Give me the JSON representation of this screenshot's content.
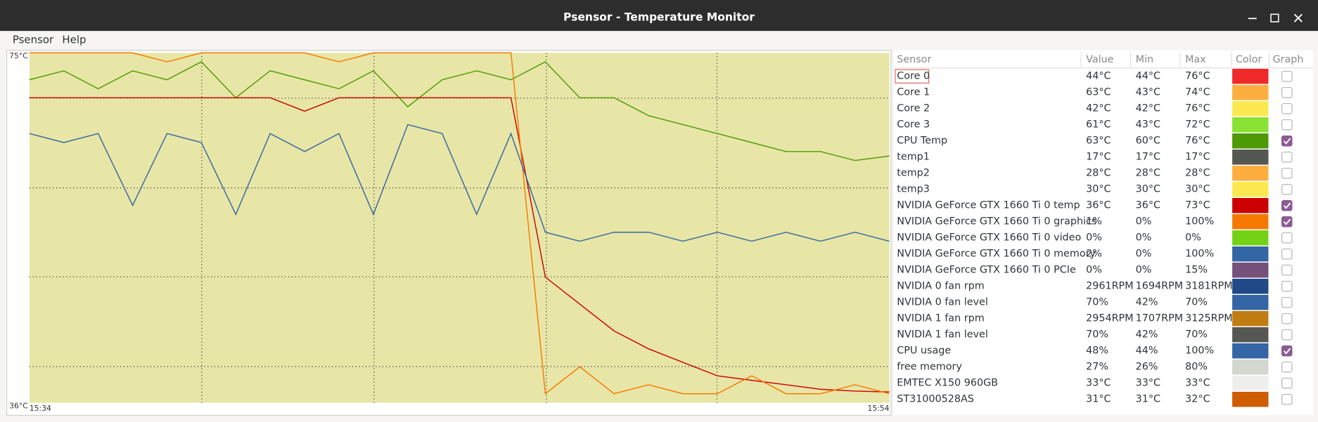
{
  "window": {
    "title": "Psensor - Temperature Monitor"
  },
  "menu": [
    "Psensor",
    "Help"
  ],
  "graph": {
    "ymax_label": "75°C",
    "ymin_label": "36°C",
    "ylim": [
      36,
      75
    ],
    "x_start": "15:34",
    "x_end": "15:54"
  },
  "table": {
    "headers": [
      "Sensor",
      "Value",
      "Min",
      "Max",
      "Color",
      "Graph"
    ],
    "rows": [
      {
        "sensor": "Core 0",
        "value": "44°C",
        "min": "44°C",
        "max": "76°C",
        "color": "#ef2929",
        "graph": false
      },
      {
        "sensor": "Core 1",
        "value": "63°C",
        "min": "43°C",
        "max": "74°C",
        "color": "#fcaf3e",
        "graph": false
      },
      {
        "sensor": "Core 2",
        "value": "42°C",
        "min": "42°C",
        "max": "76°C",
        "color": "#fce94f",
        "graph": false
      },
      {
        "sensor": "Core 3",
        "value": "61°C",
        "min": "43°C",
        "max": "72°C",
        "color": "#8ae234",
        "graph": false
      },
      {
        "sensor": "CPU Temp",
        "value": "63°C",
        "min": "60°C",
        "max": "76°C",
        "color": "#4e9a06",
        "graph": true,
        "history": [
          72,
          73,
          71,
          73,
          72,
          74,
          70,
          73,
          72,
          71,
          73,
          69,
          72,
          73,
          72,
          74,
          70,
          70,
          68,
          67,
          66,
          65,
          64,
          64,
          63,
          63.5
        ]
      },
      {
        "sensor": "temp1",
        "value": "17°C",
        "min": "17°C",
        "max": "17°C",
        "color": "#555753",
        "graph": false
      },
      {
        "sensor": "temp2",
        "value": "28°C",
        "min": "28°C",
        "max": "28°C",
        "color": "#fcaf3e",
        "graph": false
      },
      {
        "sensor": "temp3",
        "value": "30°C",
        "min": "30°C",
        "max": "30°C",
        "color": "#fce94f",
        "graph": false
      },
      {
        "sensor": "NVIDIA GeForce GTX 1660 Ti 0 temp",
        "value": "36°C",
        "min": "36°C",
        "max": "73°C",
        "color": "#cc0000",
        "graph": true,
        "history": [
          70,
          70,
          70,
          70,
          70,
          70,
          70,
          70,
          68.5,
          70,
          70,
          70,
          70,
          70,
          70,
          50,
          47,
          44,
          42,
          40.5,
          39,
          38.5,
          38,
          37.5,
          37.3,
          37.2
        ]
      },
      {
        "sensor": "NVIDIA GeForce GTX 1660 Ti 0 graphics",
        "value": "1%",
        "min": "0%",
        "max": "100%",
        "color": "#f57900",
        "graph": true,
        "history": [
          75,
          75,
          75,
          75,
          74,
          75,
          75,
          75,
          75,
          74,
          75,
          75,
          75,
          75,
          75,
          37,
          40,
          37,
          38,
          37,
          37,
          39,
          37,
          37,
          38,
          37
        ]
      },
      {
        "sensor": "NVIDIA GeForce GTX 1660 Ti 0 video",
        "value": "0%",
        "min": "0%",
        "max": "0%",
        "color": "#73d216",
        "graph": false
      },
      {
        "sensor": "NVIDIA GeForce GTX 1660 Ti 0 memory",
        "value": "2%",
        "min": "0%",
        "max": "100%",
        "color": "#3465a4",
        "graph": false
      },
      {
        "sensor": "NVIDIA GeForce GTX 1660 Ti 0 PCIe",
        "value": "0%",
        "min": "0%",
        "max": "15%",
        "color": "#75507b",
        "graph": false
      },
      {
        "sensor": "NVIDIA 0 fan rpm",
        "value": "2961RPM",
        "min": "1694RPM",
        "max": "3181RPM",
        "color": "#204a87",
        "graph": false
      },
      {
        "sensor": "NVIDIA 0 fan level",
        "value": "70%",
        "min": "42%",
        "max": "70%",
        "color": "#3465a4",
        "graph": false
      },
      {
        "sensor": "NVIDIA 1 fan rpm",
        "value": "2954RPM",
        "min": "1707RPM",
        "max": "3125RPM",
        "color": "#c17d11",
        "graph": false
      },
      {
        "sensor": "NVIDIA 1 fan level",
        "value": "70%",
        "min": "42%",
        "max": "70%",
        "color": "#555753",
        "graph": false
      },
      {
        "sensor": "CPU usage",
        "value": "48%",
        "min": "44%",
        "max": "100%",
        "color": "#3465a4",
        "graph": true,
        "history": [
          66,
          65,
          66,
          58,
          66,
          65,
          57,
          66,
          64,
          66,
          57,
          67,
          66,
          57,
          66,
          55,
          54,
          55,
          55,
          54,
          55,
          54,
          55,
          54,
          55,
          54
        ]
      },
      {
        "sensor": "free memory",
        "value": "27%",
        "min": "26%",
        "max": "80%",
        "color": "#d3d7cf",
        "graph": false
      },
      {
        "sensor": "EMTEC X150 960GB",
        "value": "33°C",
        "min": "33°C",
        "max": "33°C",
        "color": "#eeeeec",
        "graph": false
      },
      {
        "sensor": "ST31000528AS",
        "value": "31°C",
        "min": "31°C",
        "max": "32°C",
        "color": "#ce5c00",
        "graph": false
      }
    ]
  }
}
